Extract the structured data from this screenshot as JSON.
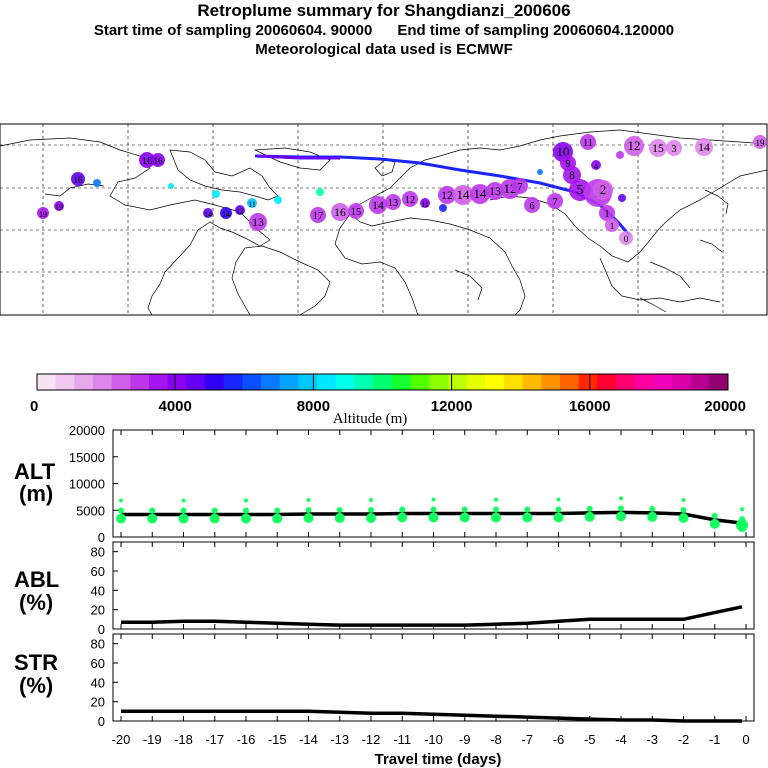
{
  "header": {
    "title": "Retroplume summary for Shangdianzi_200606",
    "sampling": "Start time of sampling 20060604. 90000      End time of sampling 20060604.120000",
    "met": "Meteorological data used is ECMWF"
  },
  "colorbar": {
    "min": 0,
    "max": 20000,
    "ticks": [
      "0",
      "4000",
      "8000",
      "12000",
      "16000",
      "20000"
    ],
    "label": "Altitude (m)",
    "colors": [
      "#f7e4f7",
      "#f0c8f0",
      "#e8a8ec",
      "#de86ea",
      "#cf5ee8",
      "#bd36ea",
      "#a414ec",
      "#8a00f0",
      "#6400f4",
      "#3000f4",
      "#1a24ff",
      "#0a50ff",
      "#0a7aff",
      "#06a4ff",
      "#00c8ff",
      "#00e8ff",
      "#00ffe8",
      "#00ffb0",
      "#00ff70",
      "#14ff30",
      "#50ff00",
      "#8cff00",
      "#beff00",
      "#e6ff00",
      "#ffff00",
      "#ffe000",
      "#ffbc00",
      "#ff9400",
      "#ff6400",
      "#ff2800",
      "#ff0030",
      "#ff0070",
      "#ff00a0",
      "#f000b8",
      "#d800a8",
      "#b80090",
      "#900070"
    ]
  },
  "map": {
    "trajectory_labels": [
      "0",
      "1",
      "2",
      "3",
      "4",
      "5",
      "6",
      "7",
      "8",
      "9",
      "10",
      "11",
      "12",
      "13",
      "14",
      "15",
      "16",
      "17",
      "18",
      "19"
    ]
  },
  "panels": {
    "alt": {
      "label1": "ALT",
      "label2": "(m)",
      "yticks": [
        "0",
        "5000",
        "10000",
        "15000",
        "20000"
      ]
    },
    "abl": {
      "label1": "ABL",
      "label2": "(%)",
      "yticks": [
        "0",
        "20",
        "40",
        "60",
        "80"
      ]
    },
    "str": {
      "label1": "STR",
      "label2": "(%)",
      "yticks": [
        "0",
        "20",
        "40",
        "60",
        "80"
      ]
    }
  },
  "chart_data": {
    "type": "line",
    "title": "Retroplume summary for Shangdianzi_200606",
    "xlabel": "Travel time (days)",
    "xlim": [
      -20,
      0
    ],
    "xticks": [
      "-20",
      "-19",
      "-18",
      "-17",
      "-16",
      "-15",
      "-14",
      "-13",
      "-12",
      "-11",
      "-10",
      "-9",
      "-8",
      "-7",
      "-6",
      "-5",
      "-4",
      "-3",
      "-2",
      "-1",
      "0"
    ],
    "x": [
      -20,
      -19,
      -18,
      -17,
      -16,
      -15,
      -14,
      -13,
      -12,
      -11,
      -10,
      -9,
      -8,
      -7,
      -6,
      -5,
      -4,
      -3,
      -2,
      -1,
      -0.125
    ],
    "series": [
      {
        "name": "ALT",
        "ylabel": "ALT (m)",
        "ylim": [
          0,
          20000
        ],
        "values": [
          4200,
          4200,
          4200,
          4200,
          4200,
          4200,
          4300,
          4300,
          4300,
          4400,
          4400,
          4400,
          4400,
          4400,
          4400,
          4500,
          4600,
          4500,
          4300,
          3200,
          2600
        ]
      },
      {
        "name": "ABL",
        "ylabel": "ABL (%)",
        "ylim": [
          0,
          90
        ],
        "values": [
          7,
          7,
          8,
          8,
          7,
          6,
          5,
          4,
          4,
          4,
          4,
          4,
          5,
          6,
          8,
          10,
          10,
          10,
          10,
          17,
          23
        ]
      },
      {
        "name": "STR",
        "ylabel": "STR (%)",
        "ylim": [
          0,
          90
        ],
        "values": [
          10,
          10,
          10,
          10,
          10,
          10,
          10,
          9,
          8,
          8,
          7,
          6,
          5,
          4,
          3,
          2,
          1,
          1,
          0,
          0,
          0
        ]
      }
    ]
  }
}
